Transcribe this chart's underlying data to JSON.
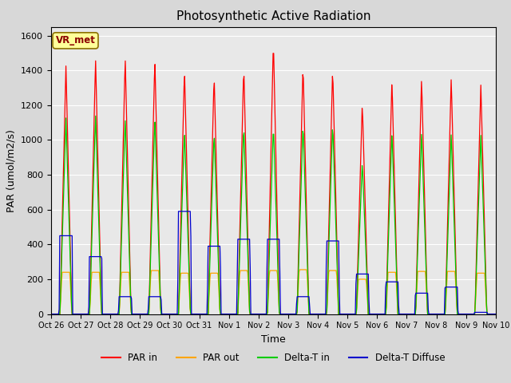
{
  "title": "Photosynthetic Active Radiation",
  "ylabel": "PAR (umol/m2/s)",
  "xlabel": "Time",
  "legend_label": "VR_met",
  "series_labels": [
    "PAR in",
    "PAR out",
    "Delta-T in",
    "Delta-T Diffuse"
  ],
  "series_colors": [
    "#ff0000",
    "#ffa500",
    "#00cc00",
    "#0000cc"
  ],
  "ylim": [
    0,
    1650
  ],
  "yticks": [
    0,
    200,
    400,
    600,
    800,
    1000,
    1200,
    1400,
    1600
  ],
  "plot_bg_color": "#e8e8e8",
  "fig_bg_color": "#d8d8d8",
  "x_tick_labels": [
    "Oct 26",
    "Oct 27",
    "Oct 28",
    "Oct 29",
    "Oct 30",
    "Oct 31",
    "Nov 1",
    "Nov 2",
    "Nov 3",
    "Nov 4",
    "Nov 5",
    "Nov 6",
    "Nov 7",
    "Nov 8",
    "Nov 9",
    "Nov 10"
  ],
  "num_days": 15,
  "points_per_day": 48,
  "day_start": 0.25,
  "day_end": 0.75
}
